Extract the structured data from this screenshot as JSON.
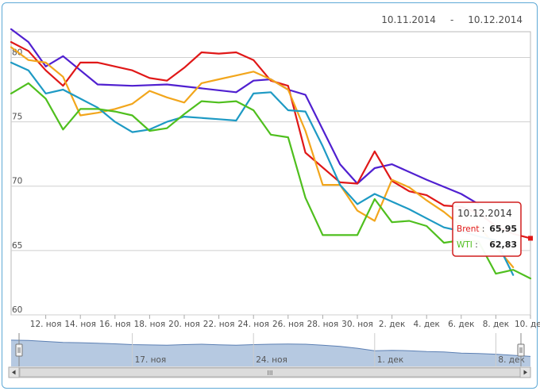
{
  "date_range": {
    "from": "10.11.2014",
    "separator": "-",
    "to": "10.12.2014"
  },
  "colors": {
    "grid": "#cfcfcf",
    "navigator_fill": "#a9bfdc",
    "navigator_line": "#5b7fb3",
    "tooltip_border": "#d11e1e"
  },
  "chart_data": {
    "type": "line",
    "ylim": [
      60,
      82
    ],
    "y_ticks": [
      60,
      65,
      70,
      75,
      80
    ],
    "x_ticks": [
      "12. ноя",
      "14. ноя",
      "16. ноя",
      "18. ноя",
      "20. ноя",
      "22. ноя",
      "24. ноя",
      "26. ноя",
      "28. ноя",
      "30. ноя",
      "2. дек",
      "4. дек",
      "6. дек",
      "8. дек",
      "10. дек"
    ],
    "x_tick_days": [
      2,
      4,
      6,
      8,
      10,
      12,
      14,
      16,
      18,
      20,
      22,
      24,
      26,
      28,
      30
    ],
    "series": [
      {
        "name": "",
        "color": "#5020d0",
        "x": [
          0,
          1,
          2,
          3,
          5,
          7,
          9,
          11,
          13,
          14,
          15,
          16,
          17,
          19,
          20,
          21,
          22,
          24,
          26,
          27
        ],
        "values": [
          82.2,
          81.2,
          79.3,
          80.1,
          77.9,
          77.8,
          77.9,
          77.6,
          77.3,
          78.2,
          78.3,
          77.5,
          77.1,
          71.7,
          70.2,
          71.4,
          71.7,
          70.5,
          69.4,
          68.6
        ]
      },
      {
        "name": "Brent",
        "color": "#e01818",
        "x": [
          0,
          1,
          2,
          3,
          4,
          5,
          6,
          7,
          8,
          9,
          10,
          11,
          12,
          13,
          14,
          15,
          16,
          17,
          19,
          20,
          21,
          22,
          23,
          24,
          25,
          26,
          27,
          28,
          29,
          30
        ],
        "values": [
          81.2,
          80.5,
          79.0,
          77.8,
          79.6,
          79.6,
          79.3,
          79.0,
          78.4,
          78.2,
          79.2,
          80.4,
          80.3,
          80.4,
          79.8,
          78.2,
          77.8,
          72.6,
          70.3,
          70.2,
          72.7,
          70.4,
          69.6,
          69.3,
          68.5,
          68.4,
          67.9,
          66.9,
          66.3,
          65.95
        ]
      },
      {
        "name": "",
        "color": "#f2a61c",
        "x": [
          0,
          1,
          2,
          3,
          4,
          5,
          6,
          7,
          8,
          9,
          10,
          11,
          12,
          13,
          14,
          15,
          16,
          17,
          18,
          19,
          20,
          21,
          22,
          23,
          24,
          25,
          26,
          27,
          28,
          29
        ],
        "values": [
          80.8,
          79.8,
          79.6,
          78.5,
          75.5,
          75.7,
          76.0,
          76.4,
          77.4,
          76.9,
          76.5,
          78.0,
          78.3,
          78.6,
          78.9,
          78.3,
          77.5,
          74.3,
          70.1,
          70.1,
          68.1,
          67.3,
          70.5,
          69.9,
          68.9,
          68.0,
          66.9,
          66.9,
          65.3,
          63.7
        ]
      },
      {
        "name": "",
        "color": "#1e9ac4",
        "x": [
          0,
          1,
          2,
          3,
          4,
          5,
          6,
          7,
          8,
          9,
          10,
          11,
          12,
          13,
          14,
          15,
          16,
          17,
          18,
          19,
          20,
          21,
          22,
          23,
          24,
          25,
          26,
          27,
          28,
          29
        ],
        "values": [
          79.6,
          79.0,
          77.2,
          77.5,
          76.8,
          76.1,
          75.0,
          74.2,
          74.4,
          75.0,
          75.4,
          75.3,
          75.2,
          75.1,
          77.2,
          77.3,
          75.9,
          75.8,
          73.1,
          70.1,
          68.6,
          69.4,
          68.8,
          68.2,
          67.5,
          66.8,
          66.5,
          66.1,
          65.8,
          63.1
        ]
      },
      {
        "name": "WTI",
        "color": "#4fbf1e",
        "x": [
          0,
          1,
          2,
          3,
          4,
          5,
          6,
          7,
          8,
          9,
          10,
          11,
          12,
          13,
          14,
          15,
          16,
          17,
          18,
          19,
          20,
          21,
          22,
          23,
          24,
          25,
          26,
          27,
          28,
          29,
          30
        ],
        "values": [
          77.2,
          78.0,
          76.8,
          74.4,
          76.0,
          76.0,
          75.8,
          75.5,
          74.3,
          74.5,
          75.6,
          76.6,
          76.5,
          76.6,
          75.9,
          74.0,
          73.8,
          69.1,
          66.2,
          66.2,
          66.2,
          69.0,
          67.2,
          67.3,
          66.9,
          65.6,
          65.8,
          65.7,
          63.2,
          63.5,
          62.83
        ]
      }
    ]
  },
  "tooltip": {
    "date": "10.12.2014",
    "rows": [
      {
        "label": "Brent",
        "separator": ":",
        "value": "65,95",
        "color": "#e01818"
      },
      {
        "label": "WTI",
        "separator": ":",
        "value": "62,83",
        "color": "#4fbf1e"
      }
    ]
  },
  "navigator": {
    "labels": [
      "17. ноя",
      "24. ноя",
      "1. дек",
      "8. дек"
    ],
    "label_days": [
      7,
      14,
      21,
      28
    ],
    "values": [
      82.2,
      82.0,
      81.5,
      81.0,
      80.8,
      80.5,
      80.2,
      79.8,
      79.6,
      79.5,
      79.8,
      80.0,
      79.7,
      79.5,
      79.8,
      80.0,
      80.1,
      80.0,
      79.5,
      78.8,
      77.8,
      76.5,
      76.7,
      76.5,
      76.0,
      75.8,
      75.2,
      75.0,
      74.6,
      74.0,
      73.4
    ],
    "ylim": [
      68,
      86
    ],
    "scrollbar_grip": "III"
  }
}
